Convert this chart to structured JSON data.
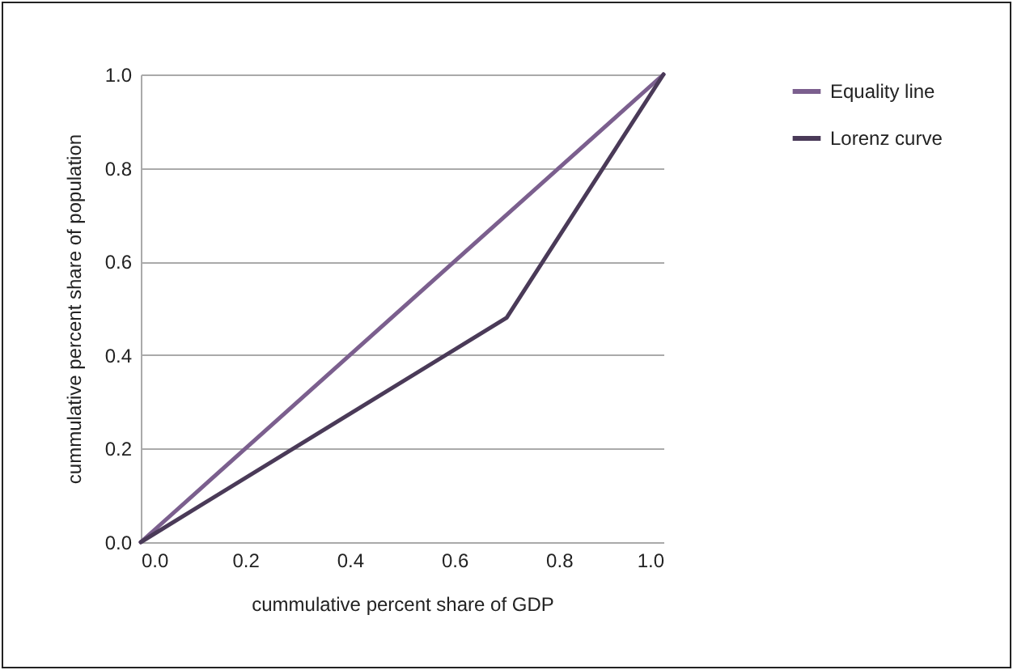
{
  "chart_data": {
    "type": "line",
    "xlabel": "cummulative percent share of GDP",
    "ylabel": "cummulative percent share of population",
    "xlim": [
      0,
      1
    ],
    "xticks": [
      {
        "value": 0,
        "label": "0.0"
      },
      {
        "value": 0.2,
        "label": "0.2"
      },
      {
        "value": 0.4,
        "label": "0.4"
      },
      {
        "value": 0.6,
        "label": "0.6"
      },
      {
        "value": 0.8,
        "label": "0.8"
      },
      {
        "value": 1,
        "label": "1.0"
      }
    ],
    "ylim": [
      0,
      1
    ],
    "yticks": [
      {
        "value": 0,
        "label": "0.0"
      },
      {
        "value": 0.2,
        "label": "0.2"
      },
      {
        "value": 0.4,
        "label": "0.4"
      },
      {
        "value": 0.6,
        "label": "0.6"
      },
      {
        "value": 0.8,
        "label": "0.8"
      },
      {
        "value": 1,
        "label": "1.0"
      }
    ],
    "grid": "y",
    "legend": "right",
    "series": [
      {
        "name": "Equality line",
        "color": "#7b5f8e",
        "x": [
          0,
          1
        ],
        "values": [
          0,
          1
        ]
      },
      {
        "name": "Lorenz curve",
        "color": "#4a3a58",
        "x": [
          0,
          0.7,
          1
        ],
        "values": [
          0,
          0.48,
          1
        ]
      }
    ]
  }
}
